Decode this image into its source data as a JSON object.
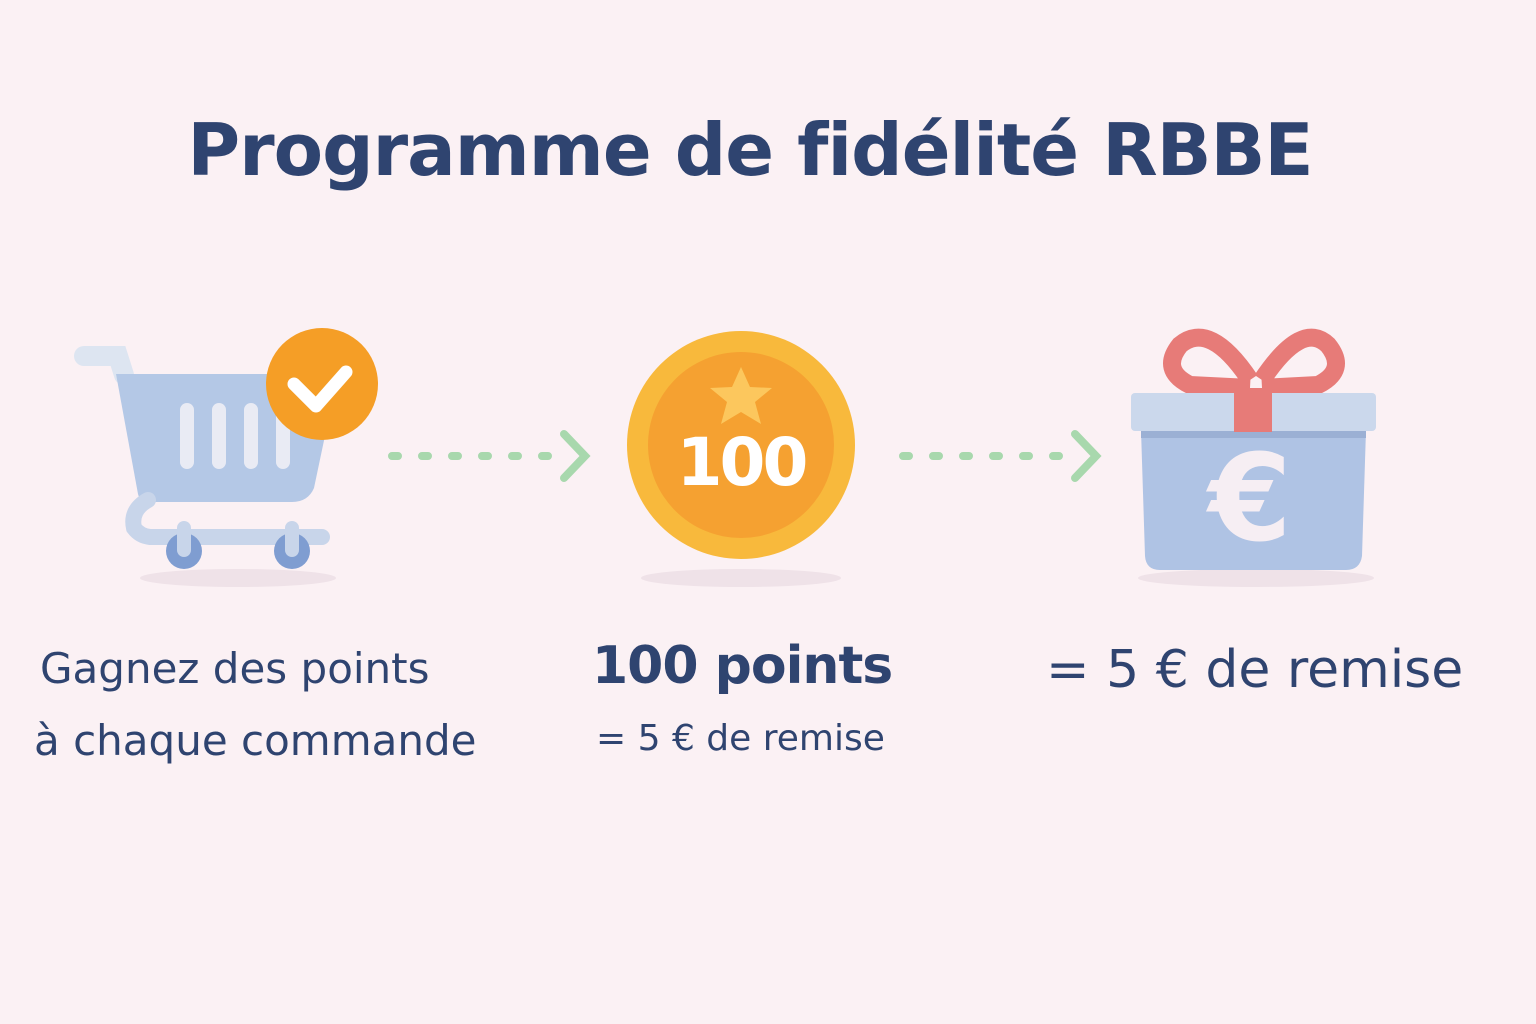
{
  "title": "Programme de fidélité RBBE",
  "steps": [
    {
      "icon": "shopping-cart-check-icon",
      "line1": "Gagnez des points",
      "line2": "à chaque commande"
    },
    {
      "icon": "coin-star-icon",
      "coin_value": "100",
      "line1": "100 points",
      "line2": "= 5 € de remise"
    },
    {
      "icon": "gift-euro-icon",
      "line1": "= 5 € de remise"
    }
  ],
  "colors": {
    "text": "#2f4470",
    "orange": "#f59e26",
    "blue": "#aec3e4",
    "green": "#a8d8ad",
    "red": "#e77b78",
    "background": "#fbf1f4"
  }
}
